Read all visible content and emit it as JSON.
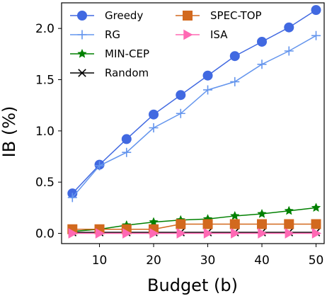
{
  "chart_data": {
    "type": "line",
    "title": "",
    "xlabel": "Budget (b)",
    "ylabel": "IB (%)",
    "xlim": [
      3,
      51.5
    ],
    "ylim": [
      -0.1,
      2.25
    ],
    "x": [
      5,
      10,
      15,
      20,
      25,
      30,
      35,
      40,
      45,
      50
    ],
    "xticks": [
      10,
      20,
      30,
      40,
      50
    ],
    "yticks": [
      0.0,
      0.5,
      1.0,
      1.5,
      2.0
    ],
    "xtick_labels": [
      "10",
      "20",
      "30",
      "40",
      "50"
    ],
    "ytick_labels": [
      "0.0",
      "0.5",
      "1.0",
      "1.5",
      "2.0"
    ],
    "legend_position": "top-left",
    "grid": false,
    "series": [
      {
        "name": "Greedy",
        "color": "#4169e1",
        "marker": "circle",
        "values": [
          0.39,
          0.67,
          0.92,
          1.16,
          1.35,
          1.54,
          1.73,
          1.87,
          2.01,
          2.18
        ]
      },
      {
        "name": "RG",
        "color": "#6495ed",
        "marker": "plus",
        "values": [
          0.35,
          0.66,
          0.79,
          1.03,
          1.17,
          1.4,
          1.48,
          1.65,
          1.78,
          1.93
        ]
      },
      {
        "name": "MIN-CEP",
        "color": "#008000",
        "marker": "star",
        "values": [
          0.02,
          0.04,
          0.08,
          0.11,
          0.13,
          0.14,
          0.17,
          0.19,
          0.22,
          0.25
        ]
      },
      {
        "name": "Random",
        "color": "#000000",
        "marker": "x",
        "values": [
          0.01,
          0.01,
          0.01,
          0.01,
          0.01,
          0.01,
          0.01,
          0.01,
          0.01,
          0.01
        ]
      },
      {
        "name": "SPEC-TOP",
        "color": "#d2691e",
        "marker": "square",
        "values": [
          0.04,
          0.04,
          0.04,
          0.04,
          0.09,
          0.09,
          0.09,
          0.09,
          0.09,
          0.09
        ]
      },
      {
        "name": "ISA",
        "color": "#ff69b4",
        "marker": "triangle-right",
        "values": [
          0.0,
          0.0,
          0.0,
          0.0,
          0.0,
          0.0,
          0.0,
          0.0,
          0.0,
          0.0
        ]
      }
    ]
  }
}
